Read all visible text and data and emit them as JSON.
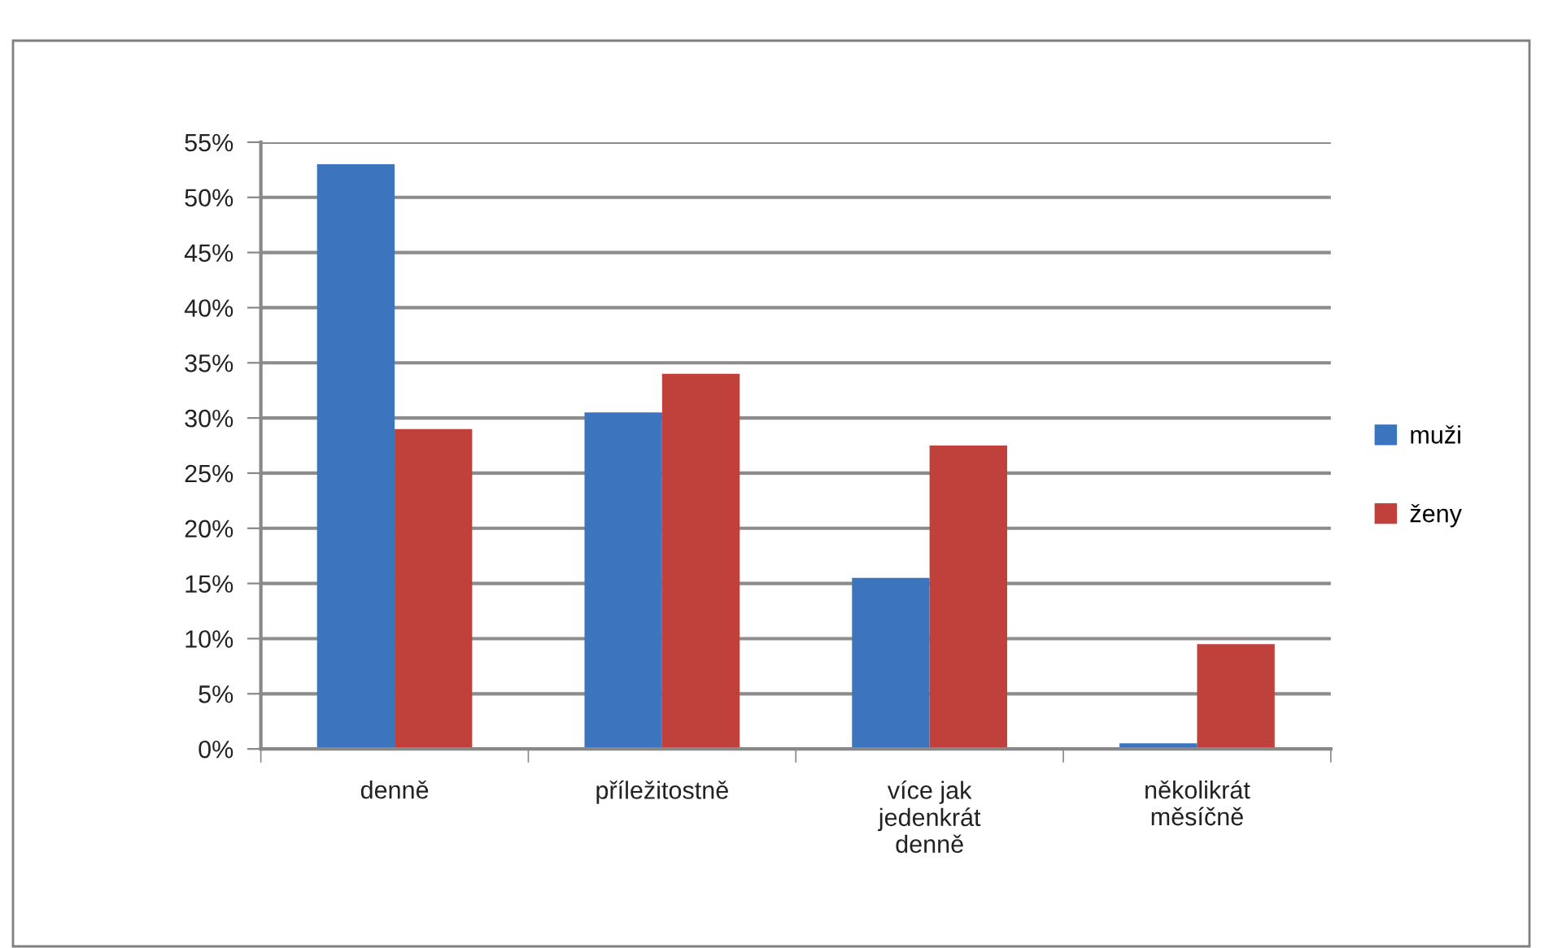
{
  "chart_data": {
    "type": "bar",
    "categories": [
      "denně",
      "příležitostně",
      "více jak jedenkrát denně",
      "několikrát měsíčně"
    ],
    "series": [
      {
        "name": "muži",
        "color": "#3c74be",
        "values": [
          53,
          30.5,
          15.5,
          0.5
        ]
      },
      {
        "name": "ženy",
        "color": "#c0403c",
        "values": [
          29,
          34,
          27.5,
          9.5
        ]
      }
    ],
    "ylim": [
      0,
      55
    ],
    "yticks": [
      {
        "value": 0,
        "label": "0%"
      },
      {
        "value": 5,
        "label": "5%"
      },
      {
        "value": 10,
        "label": "10%"
      },
      {
        "value": 15,
        "label": "15%"
      },
      {
        "value": 20,
        "label": "20%"
      },
      {
        "value": 25,
        "label": "25%"
      },
      {
        "value": 30,
        "label": "30%"
      },
      {
        "value": 35,
        "label": "35%"
      },
      {
        "value": 40,
        "label": "40%"
      },
      {
        "value": 45,
        "label": "45%"
      },
      {
        "value": 50,
        "label": "50%"
      },
      {
        "value": 55,
        "label": "55%"
      }
    ],
    "grid": "y",
    "legend": "right"
  }
}
